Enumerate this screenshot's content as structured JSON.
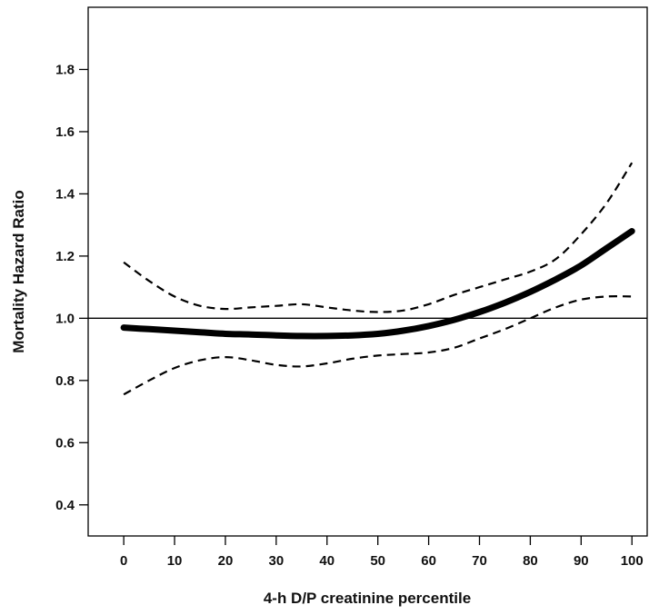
{
  "chart_data": {
    "type": "line",
    "title": "",
    "xlabel": "4-h D/P creatinine percentile",
    "ylabel": "Mortality Hazard Ratio",
    "xlim": [
      -7,
      103
    ],
    "ylim": [
      0.3,
      2.0
    ],
    "x_ticks": [
      0,
      10,
      20,
      30,
      40,
      50,
      60,
      70,
      80,
      90,
      100
    ],
    "y_ticks": [
      0.4,
      0.6,
      0.8,
      1.0,
      1.2,
      1.4,
      1.6,
      1.8
    ],
    "y_tick_labels": [
      "0.4",
      "0.6",
      "0.8",
      "1.0",
      "1.2",
      "1.4",
      "1.6",
      "1.8"
    ],
    "reference_line": {
      "y": 1.0
    },
    "grid": false,
    "legend": "none",
    "series": [
      {
        "role": "estimate",
        "style": "solid-thick",
        "color": "#000000",
        "x": [
          0,
          5,
          10,
          15,
          20,
          25,
          30,
          35,
          40,
          45,
          50,
          55,
          60,
          65,
          70,
          75,
          80,
          85,
          90,
          95,
          100
        ],
        "y": [
          0.97,
          0.965,
          0.96,
          0.955,
          0.95,
          0.948,
          0.945,
          0.943,
          0.943,
          0.945,
          0.95,
          0.96,
          0.975,
          0.995,
          1.02,
          1.05,
          1.085,
          1.125,
          1.17,
          1.225,
          1.28
        ]
      },
      {
        "role": "upper-ci",
        "style": "dashed",
        "color": "#000000",
        "x": [
          0,
          5,
          10,
          15,
          20,
          25,
          30,
          35,
          40,
          45,
          50,
          55,
          60,
          65,
          70,
          75,
          80,
          85,
          90,
          95,
          100
        ],
        "y": [
          1.18,
          1.12,
          1.07,
          1.04,
          1.03,
          1.035,
          1.04,
          1.045,
          1.035,
          1.025,
          1.02,
          1.025,
          1.045,
          1.075,
          1.1,
          1.125,
          1.15,
          1.19,
          1.27,
          1.37,
          1.5
        ]
      },
      {
        "role": "lower-ci",
        "style": "dashed",
        "color": "#000000",
        "x": [
          0,
          5,
          10,
          15,
          20,
          25,
          30,
          35,
          40,
          45,
          50,
          55,
          60,
          65,
          70,
          75,
          80,
          85,
          90,
          95,
          100
        ],
        "y": [
          0.755,
          0.8,
          0.84,
          0.865,
          0.875,
          0.865,
          0.85,
          0.845,
          0.855,
          0.87,
          0.88,
          0.885,
          0.89,
          0.905,
          0.935,
          0.965,
          1.0,
          1.035,
          1.06,
          1.07,
          1.07
        ]
      }
    ]
  }
}
